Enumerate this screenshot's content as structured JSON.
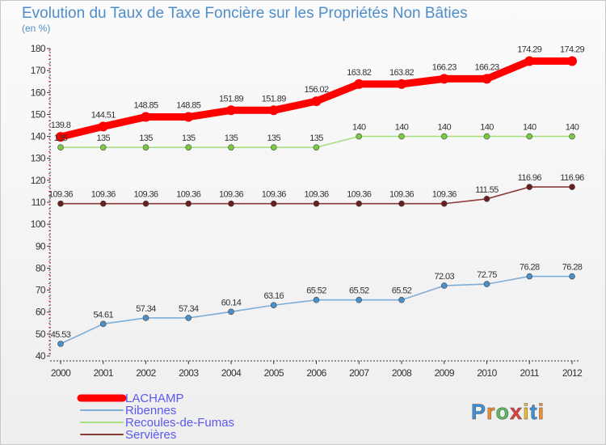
{
  "chart_data": {
    "type": "line",
    "title": "Evolution du Taux de Taxe Foncière sur les Propriétés Non Bâties",
    "subtitle": "(en %)",
    "xlabel": "",
    "ylabel": "",
    "x": [
      "2000",
      "2001",
      "2002",
      "2003",
      "2004",
      "2005",
      "2006",
      "2007",
      "2008",
      "2009",
      "2010",
      "2011",
      "2012"
    ],
    "yticks": [
      40,
      50,
      60,
      70,
      80,
      90,
      100,
      110,
      120,
      130,
      140,
      150,
      160,
      170,
      180
    ],
    "ylim": [
      40,
      180
    ],
    "grid": false,
    "legend_position": "bottom-left",
    "series": [
      {
        "name": "LACHAMP",
        "color": "#ff0000",
        "values": [
          139.8,
          144.51,
          148.85,
          148.85,
          151.89,
          151.89,
          156.02,
          163.82,
          163.82,
          166.23,
          166.23,
          174.29,
          174.29
        ],
        "labels": [
          "139.8",
          "144.51",
          "148.85",
          "148.85",
          "151.89",
          "151.89",
          "156.02",
          "163.82",
          "163.82",
          "166.23",
          "166.23",
          "174.29",
          "174.29"
        ]
      },
      {
        "name": "Ribennes",
        "color": "#7eaed8",
        "point_color": "#4a90c8",
        "values": [
          45.53,
          54.61,
          57.34,
          57.34,
          60.14,
          63.16,
          65.52,
          65.52,
          65.52,
          72.03,
          72.75,
          76.28,
          76.28
        ],
        "labels": [
          "45.53",
          "54.61",
          "57.34",
          "57.34",
          "60.14",
          "63.16",
          "65.52",
          "65.52",
          "65.52",
          "72.03",
          "72.75",
          "76.28",
          "76.28"
        ]
      },
      {
        "name": "Recoules-de-Fumas",
        "color": "#a8df80",
        "point_color": "#7ac943",
        "values": [
          135,
          135,
          135,
          135,
          135,
          135,
          135,
          140,
          140,
          140,
          140,
          140,
          140
        ],
        "labels": [
          "135",
          "135",
          "135",
          "135",
          "135",
          "135",
          "135",
          "140",
          "140",
          "140",
          "140",
          "140",
          "140"
        ]
      },
      {
        "name": "Servières",
        "color": "#8b3a3a",
        "point_color": "#6b1e1e",
        "values": [
          109.36,
          109.36,
          109.36,
          109.36,
          109.36,
          109.36,
          109.36,
          109.36,
          109.36,
          109.36,
          111.55,
          116.96,
          116.96
        ],
        "labels": [
          "109.36",
          "109.36",
          "109.36",
          "109.36",
          "109.36",
          "109.36",
          "109.36",
          "109.36",
          "109.36",
          "109.36",
          "111.55",
          "116.96",
          "116.96"
        ]
      }
    ]
  },
  "logo": {
    "text": "Proxiti",
    "letter_colors": [
      "#3a8fd6",
      "#f28c28",
      "#5cb85c",
      "#e23c3c",
      "#f2c028",
      "#3a8fd6",
      "#f28c28"
    ]
  },
  "colors": {
    "title": "#4f8dc9",
    "legend_text": "#5a5af0",
    "axis": "#333333",
    "axis_minor_ticks": "#e03030"
  }
}
